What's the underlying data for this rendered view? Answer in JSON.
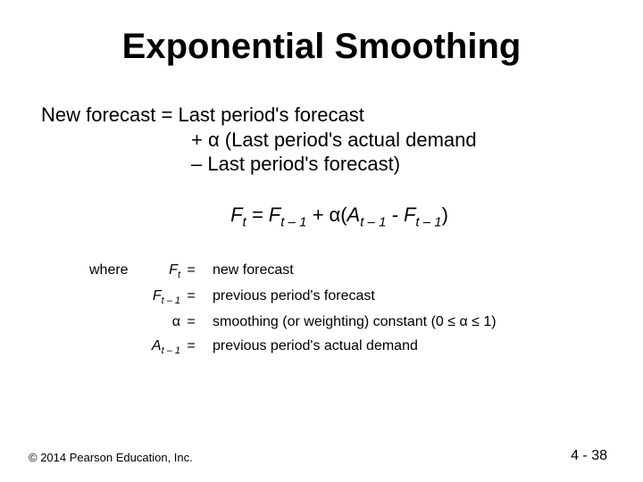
{
  "title": "Exponential Smoothing",
  "body": {
    "line1": "New forecast =  Last period's forecast",
    "line2": "+ α (Last period's actual demand",
    "line3": "– Last period's forecast)"
  },
  "formula": {
    "F": "F",
    "t": "t",
    "eq": " = ",
    "tminus1": "t – 1",
    "plus": " + ",
    "alpha": "α",
    "open": "(",
    "A": "A",
    "minus": " - ",
    "close": ")"
  },
  "where": {
    "label": "where",
    "rows": [
      {
        "sym_html": "Ft",
        "sub": "t",
        "eq": "=",
        "def": "new forecast"
      },
      {
        "sym_html": "Ft-1",
        "sub": "t – 1",
        "eq": "=",
        "def": "previous period's forecast"
      },
      {
        "sym_html": "alpha",
        "eq": "=",
        "def": "smoothing (or weighting) constant (0 ≤ α ≤ 1)"
      },
      {
        "sym_html": "At-1",
        "sub": "t – 1",
        "eq": "=",
        "def": "previous period's actual demand"
      }
    ]
  },
  "footer": {
    "left": "© 2014 Pearson Education, Inc.",
    "right": "4 - 38"
  },
  "colors": {
    "background": "#ffffff",
    "text": "#000000"
  },
  "typography": {
    "title_fontsize": 40,
    "body_fontsize": 22,
    "formula_fontsize": 22,
    "where_fontsize": 16,
    "footer_fontsize": 13
  }
}
